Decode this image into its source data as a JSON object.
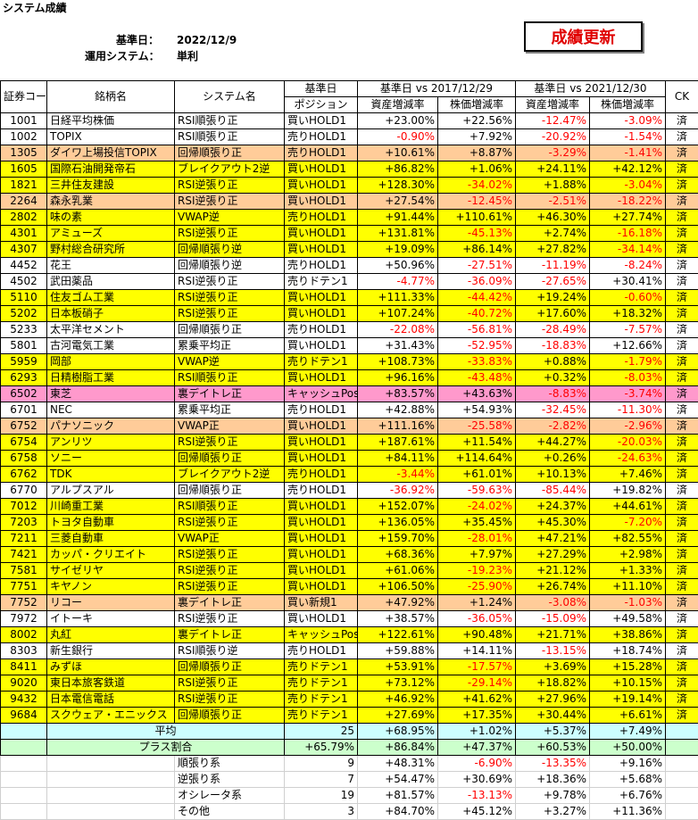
{
  "header": {
    "title": "システム成績",
    "date_label": "基準日：",
    "date": "2022/12/9",
    "system_label": "運用システム：",
    "system": "単利",
    "button": "成績更新"
  },
  "table": {
    "head": {
      "code": "証券コード",
      "name": "銘柄名",
      "system": "システム名",
      "pos_top": "基準日",
      "pos_bottom": "ポジション",
      "group1": "基準日 vs 2017/12/29",
      "group2": "基準日 vs 2021/12/30",
      "sub": [
        "資産増減率",
        "株価増減率",
        "資産増減率",
        "株価増減率"
      ],
      "ck": "CK"
    },
    "rows": [
      {
        "code": "1001",
        "name": "日経平均株価",
        "system": "RSI順張り正",
        "position": "買いHOLD1",
        "values": [
          "+23.00%",
          "+22.56%",
          "-12.47%",
          "-3.09%"
        ],
        "ck": "済",
        "bg": "#ffffff"
      },
      {
        "code": "1002",
        "name": "TOPIX",
        "system": "RSI順張り正",
        "position": "売りHOLD1",
        "values": [
          "-0.90%",
          "+7.92%",
          "-20.92%",
          "-1.54%"
        ],
        "ck": "済",
        "bg": "#ffffff"
      },
      {
        "code": "1305",
        "name": "ダイワ上場投信TOPIX",
        "system": "回帰順張り正",
        "position": "売りHOLD1",
        "values": [
          "+10.61%",
          "+8.87%",
          "-3.29%",
          "-1.41%"
        ],
        "ck": "済",
        "bg": "#ffcc99"
      },
      {
        "code": "1605",
        "name": "国際石油開発帝石",
        "system": "ブレイクアウト2逆",
        "position": "買いHOLD1",
        "values": [
          "+86.82%",
          "+1.06%",
          "+24.11%",
          "+42.12%"
        ],
        "ck": "済",
        "bg": "#ffff00"
      },
      {
        "code": "1821",
        "name": "三井住友建設",
        "system": "RSI逆張り正",
        "position": "買いHOLD1",
        "values": [
          "+128.30%",
          "-34.02%",
          "+1.88%",
          "-3.04%"
        ],
        "ck": "済",
        "bg": "#ffff00"
      },
      {
        "code": "2264",
        "name": "森永乳業",
        "system": "RSI逆張り正",
        "position": "買いHOLD1",
        "values": [
          "+27.54%",
          "-12.45%",
          "-2.51%",
          "-18.22%"
        ],
        "ck": "済",
        "bg": "#ffcc99"
      },
      {
        "code": "2802",
        "name": "味の素",
        "system": "VWAP逆",
        "position": "売りHOLD1",
        "values": [
          "+91.44%",
          "+110.61%",
          "+46.30%",
          "+27.74%"
        ],
        "ck": "済",
        "bg": "#ffff00"
      },
      {
        "code": "4301",
        "name": "アミューズ",
        "system": "RSI逆張り正",
        "position": "買いHOLD1",
        "values": [
          "+131.81%",
          "-45.13%",
          "+2.74%",
          "-16.18%"
        ],
        "ck": "済",
        "bg": "#ffff00"
      },
      {
        "code": "4307",
        "name": "野村総合研究所",
        "system": "回帰順張り逆",
        "position": "買いHOLD1",
        "values": [
          "+19.09%",
          "+86.14%",
          "+27.82%",
          "-34.14%"
        ],
        "ck": "済",
        "bg": "#ffff00"
      },
      {
        "code": "4452",
        "name": "花王",
        "system": "回帰順張り逆",
        "position": "売りHOLD1",
        "values": [
          "+50.96%",
          "-27.51%",
          "-11.19%",
          "-8.24%"
        ],
        "ck": "済",
        "bg": "#ffffff"
      },
      {
        "code": "4502",
        "name": "武田薬品",
        "system": "RSI逆張り正",
        "position": "売りドテン1",
        "values": [
          "-4.77%",
          "-36.09%",
          "-27.65%",
          "+30.41%"
        ],
        "ck": "済",
        "bg": "#ffffff"
      },
      {
        "code": "5110",
        "name": "住友ゴム工業",
        "system": "RSI逆張り正",
        "position": "買いHOLD1",
        "values": [
          "+111.33%",
          "-44.42%",
          "+19.24%",
          "-0.60%"
        ],
        "ck": "済",
        "bg": "#ffff00"
      },
      {
        "code": "5202",
        "name": "日本板硝子",
        "system": "RSI逆張り正",
        "position": "買いHOLD1",
        "values": [
          "+107.24%",
          "-40.72%",
          "+17.60%",
          "+18.32%"
        ],
        "ck": "済",
        "bg": "#ffff00"
      },
      {
        "code": "5233",
        "name": "太平洋セメント",
        "system": "回帰順張り正",
        "position": "売りHOLD1",
        "values": [
          "-22.08%",
          "-56.81%",
          "-28.49%",
          "-7.57%"
        ],
        "ck": "済",
        "bg": "#ffffff"
      },
      {
        "code": "5801",
        "name": "古河電気工業",
        "system": "累乗平均正",
        "position": "買いHOLD1",
        "values": [
          "+31.43%",
          "-52.95%",
          "-18.83%",
          "+12.66%"
        ],
        "ck": "済",
        "bg": "#ffffff"
      },
      {
        "code": "5959",
        "name": "岡部",
        "system": "VWAP逆",
        "position": "売りドテン1",
        "values": [
          "+108.73%",
          "-33.83%",
          "+0.88%",
          "-1.79%"
        ],
        "ck": "済",
        "bg": "#ffff00"
      },
      {
        "code": "6293",
        "name": "日精樹脂工業",
        "system": "RSI順張り正",
        "position": "買いHOLD1",
        "values": [
          "+96.16%",
          "-43.48%",
          "+0.32%",
          "-8.03%"
        ],
        "ck": "済",
        "bg": "#ffff00"
      },
      {
        "code": "6502",
        "name": "東芝",
        "system": "裏デイトレ正",
        "position": "キャッシュPos",
        "values": [
          "+83.57%",
          "+43.63%",
          "-8.83%",
          "-3.74%"
        ],
        "ck": "済",
        "bg": "#ff99cc"
      },
      {
        "code": "6701",
        "name": "NEC",
        "system": "累乗平均正",
        "position": "売りHOLD1",
        "values": [
          "+42.88%",
          "+54.93%",
          "-32.45%",
          "-11.30%"
        ],
        "ck": "済",
        "bg": "#ffffff"
      },
      {
        "code": "6752",
        "name": "パナソニック",
        "system": "VWAP正",
        "position": "買いHOLD1",
        "values": [
          "+111.16%",
          "-25.58%",
          "-2.82%",
          "-2.96%"
        ],
        "ck": "済",
        "bg": "#ffcc99"
      },
      {
        "code": "6754",
        "name": "アンリツ",
        "system": "RSI逆張り正",
        "position": "買いHOLD1",
        "values": [
          "+187.61%",
          "+11.54%",
          "+44.27%",
          "-20.03%"
        ],
        "ck": "済",
        "bg": "#ffff00"
      },
      {
        "code": "6758",
        "name": "ソニー",
        "system": "回帰順張り正",
        "position": "買いHOLD1",
        "values": [
          "+84.11%",
          "+114.64%",
          "+0.26%",
          "-24.63%"
        ],
        "ck": "済",
        "bg": "#ffff00"
      },
      {
        "code": "6762",
        "name": "TDK",
        "system": "ブレイクアウト2逆",
        "position": "売りHOLD1",
        "values": [
          "-3.44%",
          "+61.01%",
          "+10.13%",
          "+7.46%"
        ],
        "ck": "済",
        "bg": "#ffff00"
      },
      {
        "code": "6770",
        "name": "アルプスアル",
        "system": "回帰順張り正",
        "position": "売りHOLD1",
        "values": [
          "-36.92%",
          "-59.63%",
          "-85.44%",
          "+19.82%"
        ],
        "ck": "済",
        "bg": "#ffffff"
      },
      {
        "code": "7012",
        "name": "川崎重工業",
        "system": "RSI順張り正",
        "position": "買いHOLD1",
        "values": [
          "+152.07%",
          "-24.02%",
          "+24.37%",
          "+44.61%"
        ],
        "ck": "済",
        "bg": "#ffff00"
      },
      {
        "code": "7203",
        "name": "トヨタ自動車",
        "system": "RSI逆張り正",
        "position": "買いHOLD1",
        "values": [
          "+136.05%",
          "+35.45%",
          "+45.30%",
          "-7.20%"
        ],
        "ck": "済",
        "bg": "#ffff00"
      },
      {
        "code": "7211",
        "name": "三菱自動車",
        "system": "VWAP正",
        "position": "買いHOLD1",
        "values": [
          "+159.70%",
          "-28.01%",
          "+47.21%",
          "+82.55%"
        ],
        "ck": "済",
        "bg": "#ffff00"
      },
      {
        "code": "7421",
        "name": "カッパ・クリエイト",
        "system": "RSI逆張り正",
        "position": "買いHOLD1",
        "values": [
          "+68.36%",
          "+7.97%",
          "+27.29%",
          "+2.98%"
        ],
        "ck": "済",
        "bg": "#ffff00"
      },
      {
        "code": "7581",
        "name": "サイゼリヤ",
        "system": "RSI逆張り正",
        "position": "買いHOLD1",
        "values": [
          "+61.06%",
          "-19.23%",
          "+21.12%",
          "+1.33%"
        ],
        "ck": "済",
        "bg": "#ffff00"
      },
      {
        "code": "7751",
        "name": "キヤノン",
        "system": "RSI逆張り正",
        "position": "買いHOLD1",
        "values": [
          "+106.50%",
          "-25.90%",
          "+26.74%",
          "+11.10%"
        ],
        "ck": "済",
        "bg": "#ffff00"
      },
      {
        "code": "7752",
        "name": "リコー",
        "system": "裏デイトレ正",
        "position": "買い新規1",
        "values": [
          "+47.92%",
          "+1.24%",
          "-3.08%",
          "-1.03%"
        ],
        "ck": "済",
        "bg": "#ffcc99"
      },
      {
        "code": "7972",
        "name": "イトーキ",
        "system": "RSI逆張り正",
        "position": "買いHOLD1",
        "values": [
          "+38.57%",
          "-36.05%",
          "-15.09%",
          "+49.58%"
        ],
        "ck": "済",
        "bg": "#ffffff"
      },
      {
        "code": "8002",
        "name": "丸紅",
        "system": "裏デイトレ正",
        "position": "キャッシュPos",
        "values": [
          "+122.61%",
          "+90.48%",
          "+21.71%",
          "+38.86%"
        ],
        "ck": "済",
        "bg": "#ffff00"
      },
      {
        "code": "8303",
        "name": "新生銀行",
        "system": "RSI順張り逆",
        "position": "売りHOLD1",
        "values": [
          "+59.88%",
          "+14.11%",
          "-13.15%",
          "+18.74%"
        ],
        "ck": "済",
        "bg": "#ffffff"
      },
      {
        "code": "8411",
        "name": "みずほ",
        "system": "回帰順張り正",
        "position": "売りドテン1",
        "values": [
          "+53.91%",
          "-17.57%",
          "+3.69%",
          "+15.28%"
        ],
        "ck": "済",
        "bg": "#ffff00"
      },
      {
        "code": "9020",
        "name": "東日本旅客鉄道",
        "system": "RSI逆張り正",
        "position": "売りドテン1",
        "values": [
          "+73.12%",
          "-29.14%",
          "+18.82%",
          "+10.15%"
        ],
        "ck": "済",
        "bg": "#ffff00"
      },
      {
        "code": "9432",
        "name": "日本電信電話",
        "system": "RSI逆張り正",
        "position": "売りドテン1",
        "values": [
          "+46.92%",
          "+41.62%",
          "+27.96%",
          "+19.14%"
        ],
        "ck": "済",
        "bg": "#ffff00"
      },
      {
        "code": "9684",
        "name": "スクウェア・エニックス",
        "system": "回帰順張り正",
        "position": "売りドテン1",
        "values": [
          "+27.69%",
          "+17.35%",
          "+30.44%",
          "+6.61%"
        ],
        "ck": "済",
        "bg": "#ffff00"
      }
    ],
    "summary": [
      {
        "label": "平均",
        "count": "25",
        "values": [
          "+68.95%",
          "+1.02%",
          "+5.37%",
          "+7.49%"
        ],
        "bg": "#ccffff"
      },
      {
        "label": "プラス割合",
        "count": "+65.79%",
        "values": [
          "+86.84%",
          "+47.37%",
          "+60.53%",
          "+50.00%"
        ],
        "bg": "#ccffcc"
      }
    ],
    "groups": [
      {
        "label": "順張り系",
        "count": "9",
        "values": [
          "+48.31%",
          "-6.90%",
          "-13.35%",
          "+9.16%"
        ]
      },
      {
        "label": "逆張り系",
        "count": "7",
        "values": [
          "+54.47%",
          "+30.69%",
          "+18.36%",
          "+5.68%"
        ]
      },
      {
        "label": "オシレータ系",
        "count": "19",
        "values": [
          "+81.57%",
          "-13.13%",
          "+9.78%",
          "+6.76%"
        ]
      },
      {
        "label": "その他",
        "count": "3",
        "values": [
          "+84.70%",
          "+45.12%",
          "+3.27%",
          "+11.36%"
        ]
      }
    ]
  }
}
